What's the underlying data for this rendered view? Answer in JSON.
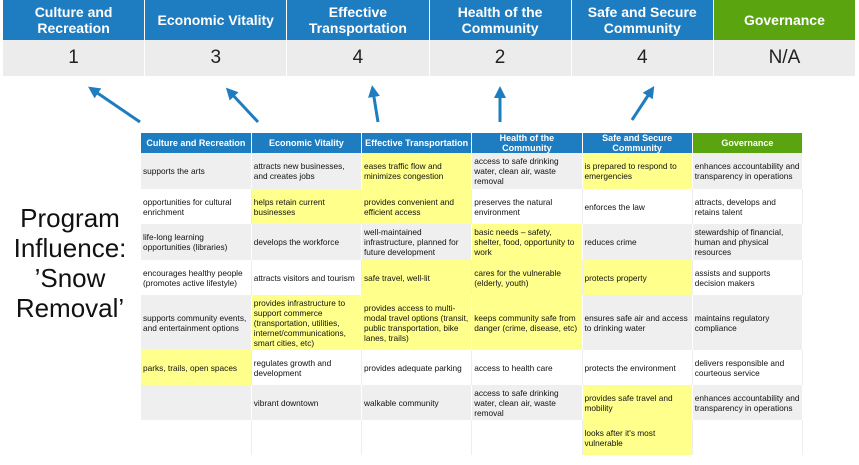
{
  "summary": {
    "columns": [
      {
        "label": "Culture and Recreation",
        "score": "1"
      },
      {
        "label": "Economic Vitality",
        "score": "3"
      },
      {
        "label": "Effective Transportation",
        "score": "4"
      },
      {
        "label": "Health of the Community",
        "score": "2"
      },
      {
        "label": "Safe and Secure Community",
        "score": "4"
      },
      {
        "label": "Governance",
        "score": "N/A"
      }
    ]
  },
  "title": "Program Influence: ’Snow Removal’",
  "colors": {
    "blue": "#1e7cc0",
    "green": "#5aa50f",
    "highlight": "#ffff8c",
    "arrow": "#1e7cc0"
  },
  "table": {
    "headers": [
      "Culture and Recreation",
      "Economic Vitality",
      "Effective Transportation",
      "Health of the Community",
      "Safe and Secure Community",
      "Governance"
    ],
    "rows": [
      [
        {
          "t": "supports the arts"
        },
        {
          "t": "attracts new businesses, and creates jobs"
        },
        {
          "t": "eases traffic flow and minimizes congestion",
          "hl": true
        },
        {
          "t": "access to safe drinking water, clean air, waste removal"
        },
        {
          "t": "is prepared to respond to emergencies",
          "hl": true
        },
        {
          "t": "enhances accountability and transparency in operations"
        }
      ],
      [
        {
          "t": "opportunities for cultural enrichment"
        },
        {
          "t": "helps retain current businesses",
          "hl": true
        },
        {
          "t": "provides convenient and efficient access",
          "hl": true
        },
        {
          "t": "preserves the natural environment"
        },
        {
          "t": "enforces the law"
        },
        {
          "t": "attracts, develops and retains talent"
        }
      ],
      [
        {
          "t": "life-long learning opportunities (libraries)"
        },
        {
          "t": "develops the workforce"
        },
        {
          "t": "well-maintained infrastructure, planned for future development"
        },
        {
          "t": "basic needs – safety, shelter, food, opportunity to work",
          "hl": true
        },
        {
          "t": "reduces crime"
        },
        {
          "t": "stewardship of financial, human and physical resources"
        }
      ],
      [
        {
          "t": "encourages healthy people (promotes active lifestyle)"
        },
        {
          "t": "attracts visitors and tourism"
        },
        {
          "t": "safe travel, well-lit",
          "hl": true
        },
        {
          "t": "cares for the vulnerable (elderly, youth)",
          "hl": true
        },
        {
          "t": "protects property",
          "hl": true
        },
        {
          "t": "assists and supports decision makers"
        }
      ],
      [
        {
          "t": "supports community events, and entertainment options"
        },
        {
          "t": "provides infrastructure to support commerce (transportation, utilities, internet/communications, smart cities, etc)",
          "hl": true
        },
        {
          "t": "provides access to multi-modal travel options (transit, public transportation, bike lanes, trails)",
          "hl": true
        },
        {
          "t": "keeps community safe from danger (crime, disease, etc)",
          "hl": true
        },
        {
          "t": "ensures safe air and access to drinking water"
        },
        {
          "t": "maintains regulatory compliance"
        }
      ],
      [
        {
          "t": "parks, trails, open spaces",
          "hl": true
        },
        {
          "t": "regulates growth and development"
        },
        {
          "t": "provides adequate parking"
        },
        {
          "t": "access to health care"
        },
        {
          "t": "protects the environment"
        },
        {
          "t": "delivers responsible and courteous service"
        }
      ],
      [
        {
          "t": ""
        },
        {
          "t": "vibrant downtown"
        },
        {
          "t": "walkable community"
        },
        {
          "t": "access to safe drinking water, clean air, waste removal"
        },
        {
          "t": "provides safe travel and mobility",
          "hl": true
        },
        {
          "t": "enhances accountability and transparency in operations"
        }
      ],
      [
        {
          "t": ""
        },
        {
          "t": ""
        },
        {
          "t": ""
        },
        {
          "t": ""
        },
        {
          "t": "looks after it's most vulnerable",
          "hl": true
        },
        {
          "t": "",
          "empty": true
        }
      ]
    ]
  }
}
